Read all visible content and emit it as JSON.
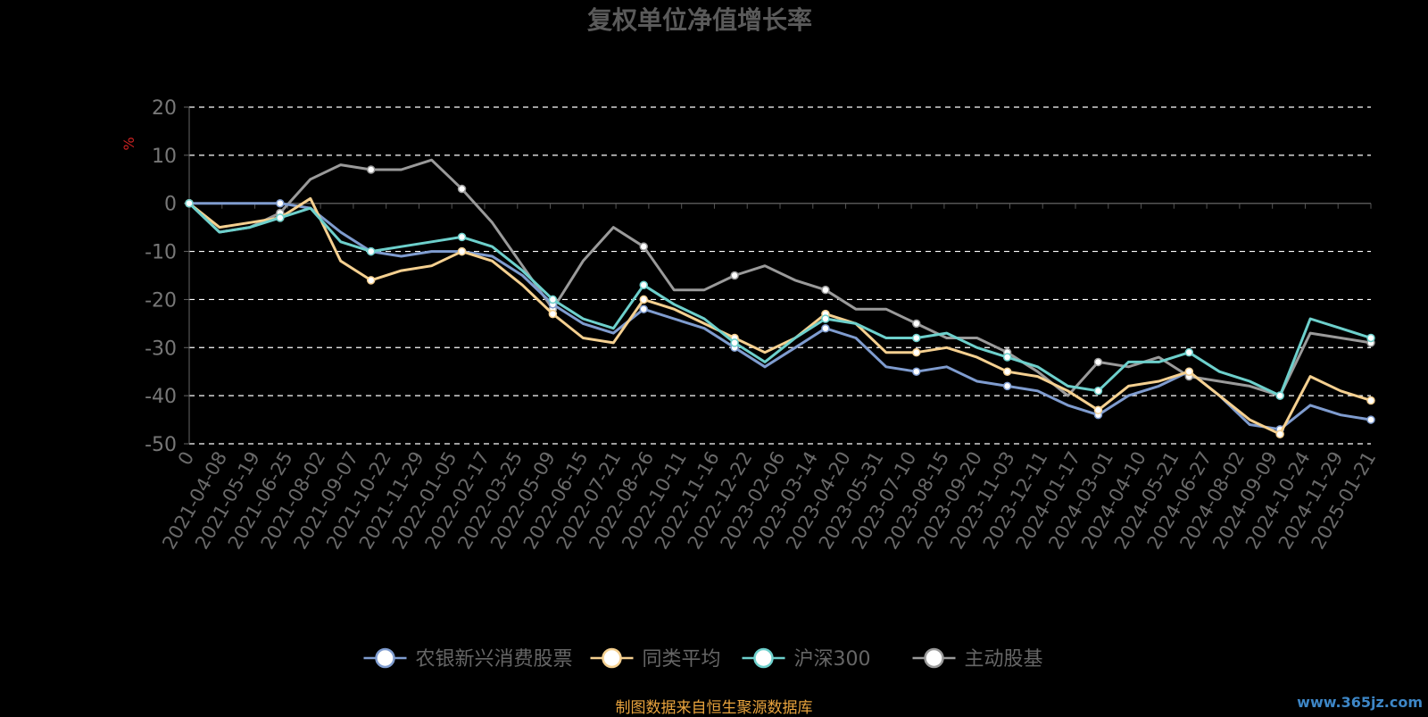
{
  "chart_data": {
    "type": "line",
    "title": "复权单位净值增长率",
    "ylabel": "%",
    "xlabel": "",
    "ylim": [
      -50,
      20
    ],
    "yticks": [
      20,
      10,
      0,
      -10,
      -20,
      -30,
      -40,
      -50
    ],
    "grid": true,
    "legend_position": "bottom",
    "x_ticks": [
      "0",
      "2021-04-08",
      "2021-05-19",
      "2021-06-25",
      "2021-08-02",
      "2021-09-07",
      "2021-10-22",
      "2021-11-29",
      "2022-01-05",
      "2022-02-17",
      "2022-03-25",
      "2022-05-09",
      "2022-06-15",
      "2022-07-21",
      "2022-08-26",
      "2022-10-11",
      "2022-11-16",
      "2022-12-22",
      "2023-02-06",
      "2023-03-14",
      "2023-04-20",
      "2023-05-31",
      "2023-07-10",
      "2023-08-15",
      "2023-09-20",
      "2023-11-03",
      "2023-12-11",
      "2024-01-17",
      "2024-03-01",
      "2024-04-10",
      "2024-05-21",
      "2024-06-27",
      "2024-08-02",
      "2024-09-09",
      "2024-10-24",
      "2024-11-29",
      "2025-01-21"
    ],
    "series": [
      {
        "name": "农银新兴消费股票",
        "color": "#7f9ccf",
        "values": [
          0,
          0,
          0,
          0,
          -1,
          -6,
          -10,
          -11,
          -10,
          -10,
          -11,
          -15,
          -21,
          -25,
          -27,
          -22,
          -24,
          -26,
          -30,
          -34,
          -30,
          -26,
          -28,
          -34,
          -35,
          -34,
          -37,
          -38,
          -39,
          -42,
          -44,
          -40,
          -38,
          -35,
          -40,
          -46,
          -47,
          -42,
          -44,
          -45
        ]
      },
      {
        "name": "同类平均",
        "color": "#f5d090",
        "values": [
          0,
          -5,
          -4,
          -3,
          1,
          -12,
          -16,
          -14,
          -13,
          -10,
          -12,
          -17,
          -23,
          -28,
          -29,
          -20,
          -22,
          -25,
          -28,
          -31,
          -28,
          -23,
          -25,
          -31,
          -31,
          -30,
          -32,
          -35,
          -36,
          -39,
          -43,
          -38,
          -37,
          -35,
          -40,
          -45,
          -48,
          -36,
          -39,
          -41
        ]
      },
      {
        "name": "沪深300",
        "color": "#6dd0cc",
        "values": [
          0,
          -6,
          -5,
          -3,
          -1,
          -8,
          -10,
          -9,
          -8,
          -7,
          -9,
          -14,
          -20,
          -24,
          -26,
          -17,
          -21,
          -24,
          -29,
          -33,
          -28,
          -24,
          -25,
          -28,
          -28,
          -27,
          -30,
          -32,
          -34,
          -38,
          -39,
          -33,
          -33,
          -31,
          -35,
          -37,
          -40,
          -24,
          -26,
          -28
        ]
      },
      {
        "name": "主动股基",
        "color": "#9a9a9a",
        "values": [
          0,
          -6,
          -5,
          -2,
          5,
          8,
          7,
          7,
          9,
          3,
          -4,
          -13,
          -22,
          -12,
          -5,
          -9,
          -18,
          -18,
          -15,
          -13,
          -16,
          -18,
          -22,
          -22,
          -25,
          -28,
          -28,
          -31,
          -35,
          -40,
          -33,
          -34,
          -32,
          -36,
          -37,
          -38,
          -40,
          -27,
          -28,
          -29
        ]
      }
    ]
  },
  "source_text": "制图数据来自恒生聚源数据库",
  "watermark_text": "www.365jz.com"
}
